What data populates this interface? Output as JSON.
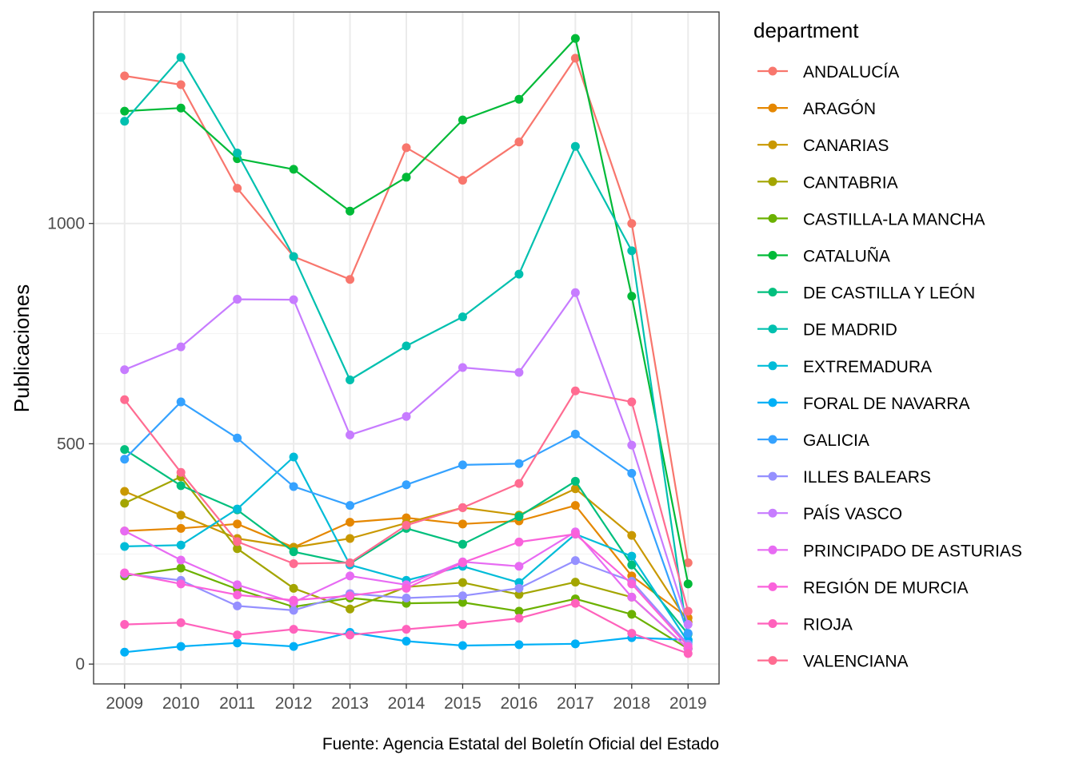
{
  "chart_data": {
    "type": "line",
    "title": "",
    "xlabel": "",
    "ylabel": "Publicaciones",
    "caption": "Fuente: Agencia Estatal del Boletín Oficial del Estado",
    "legend_title": "department",
    "legend_position": "right",
    "grid": true,
    "x": [
      2009,
      2010,
      2011,
      2012,
      2013,
      2014,
      2015,
      2016,
      2017,
      2018,
      2019
    ],
    "xlim": [
      2008.45,
      2019.55
    ],
    "ylim": [
      -45,
      1480
    ],
    "y_ticks": [
      0,
      500,
      1000
    ],
    "series": [
      {
        "name": "ANDALUCÍA",
        "color": "#F8766D",
        "values": [
          1335,
          1315,
          1080,
          925,
          873,
          1172,
          1098,
          1185,
          1375,
          1000,
          230
        ]
      },
      {
        "name": "ARAGÓN",
        "color": "#E58700",
        "values": [
          302,
          308,
          318,
          265,
          322,
          332,
          318,
          325,
          360,
          200,
          105
        ]
      },
      {
        "name": "CANARIAS",
        "color": "#C99800",
        "values": [
          392,
          338,
          285,
          265,
          285,
          320,
          355,
          338,
          398,
          292,
          95
        ]
      },
      {
        "name": "CANTABRIA",
        "color": "#A3A500",
        "values": [
          365,
          425,
          262,
          172,
          125,
          175,
          185,
          158,
          186,
          152,
          35
        ]
      },
      {
        "name": "CASTILLA-LA MANCHA",
        "color": "#6BB100",
        "values": [
          200,
          218,
          170,
          130,
          150,
          138,
          140,
          120,
          148,
          113,
          35
        ]
      },
      {
        "name": "CATALUÑA",
        "color": "#00BA38",
        "values": [
          1255,
          1262,
          1147,
          1123,
          1028,
          1105,
          1235,
          1282,
          1420,
          835,
          182
        ]
      },
      {
        "name": "DE CASTILLA Y LEÓN",
        "color": "#00BF7D",
        "values": [
          487,
          405,
          350,
          255,
          228,
          308,
          272,
          335,
          415,
          225,
          68
        ]
      },
      {
        "name": "DE MADRID",
        "color": "#00C0AF",
        "values": [
          1232,
          1377,
          1160,
          925,
          645,
          722,
          788,
          885,
          1175,
          938,
          55
        ]
      },
      {
        "name": "EXTREMADURA",
        "color": "#00BCD8",
        "values": [
          267,
          270,
          352,
          470,
          225,
          190,
          222,
          185,
          295,
          245,
          50
        ]
      },
      {
        "name": "FORAL DE NAVARRA",
        "color": "#00B0F6",
        "values": [
          27,
          40,
          48,
          40,
          72,
          52,
          42,
          44,
          46,
          60,
          55
        ]
      },
      {
        "name": "GALICIA",
        "color": "#35A2FF",
        "values": [
          465,
          595,
          513,
          403,
          360,
          407,
          452,
          455,
          522,
          433,
          70
        ]
      },
      {
        "name": "ILLES BALEARS",
        "color": "#9590FF",
        "values": [
          205,
          190,
          132,
          122,
          160,
          150,
          155,
          172,
          235,
          188,
          45
        ]
      },
      {
        "name": "PAÍS VASCO",
        "color": "#C77CFF",
        "values": [
          668,
          720,
          828,
          827,
          520,
          562,
          673,
          662,
          843,
          497,
          90
        ]
      },
      {
        "name": "PRINCIPADO DE ASTURIAS",
        "color": "#E76BF3",
        "values": [
          302,
          236,
          180,
          140,
          200,
          180,
          232,
          222,
          300,
          152,
          35
        ]
      },
      {
        "name": "REGIÓN DE MURCIA",
        "color": "#FA62DB",
        "values": [
          207,
          182,
          157,
          145,
          155,
          172,
          230,
          277,
          295,
          182,
          40
        ]
      },
      {
        "name": "RIOJA",
        "color": "#FF62BC",
        "values": [
          90,
          94,
          66,
          79,
          66,
          79,
          90,
          104,
          138,
          70,
          24
        ]
      },
      {
        "name": "VALENCIANA",
        "color": "#FF6C91",
        "values": [
          600,
          435,
          278,
          228,
          230,
          315,
          355,
          410,
          620,
          595,
          120
        ]
      }
    ]
  }
}
